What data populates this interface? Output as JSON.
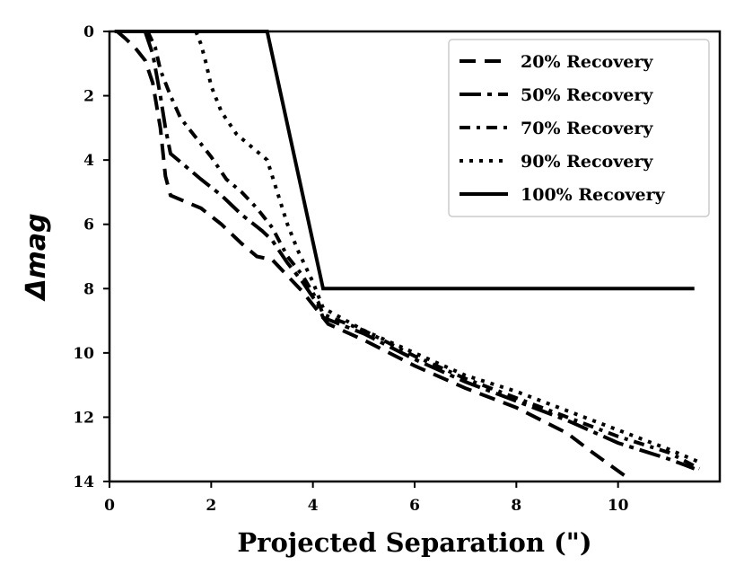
{
  "chart_data": {
    "type": "line",
    "title": "",
    "xlabel": "Projected Separation (\")",
    "ylabel": "Δmag",
    "xlim": [
      0,
      12
    ],
    "ylim": [
      0,
      14
    ],
    "y_inverted": true,
    "x_ticks": [
      "0",
      "2",
      "4",
      "6",
      "8",
      "10"
    ],
    "y_ticks": [
      "0",
      "2",
      "4",
      "6",
      "8",
      "10",
      "12",
      "14"
    ],
    "legend_position": "upper right",
    "series": [
      {
        "name": "20% Recovery",
        "style": "dashed",
        "points": [
          [
            0.15,
            0
          ],
          [
            0.3,
            0.2
          ],
          [
            0.5,
            0.5
          ],
          [
            0.7,
            0.9
          ],
          [
            0.85,
            1.6
          ],
          [
            1.0,
            3.0
          ],
          [
            1.1,
            4.5
          ],
          [
            1.2,
            5.1
          ],
          [
            1.5,
            5.3
          ],
          [
            1.8,
            5.5
          ],
          [
            2.2,
            6.0
          ],
          [
            2.6,
            6.6
          ],
          [
            2.9,
            7.0
          ],
          [
            3.2,
            7.1
          ],
          [
            3.5,
            7.6
          ],
          [
            3.8,
            8.1
          ],
          [
            4.1,
            8.7
          ],
          [
            4.3,
            9.1
          ],
          [
            5.0,
            9.6
          ],
          [
            6.0,
            10.4
          ],
          [
            7.0,
            11.1
          ],
          [
            8.0,
            11.7
          ],
          [
            9.0,
            12.5
          ],
          [
            9.5,
            13.1
          ],
          [
            10.2,
            13.9
          ]
        ]
      },
      {
        "name": "50% Recovery",
        "style": "dashdot-long",
        "points": [
          [
            0.7,
            0
          ],
          [
            0.85,
            0.7
          ],
          [
            1.0,
            2.0
          ],
          [
            1.1,
            3.0
          ],
          [
            1.2,
            3.8
          ],
          [
            1.5,
            4.2
          ],
          [
            1.8,
            4.6
          ],
          [
            2.2,
            5.1
          ],
          [
            2.6,
            5.7
          ],
          [
            3.0,
            6.2
          ],
          [
            3.2,
            6.5
          ],
          [
            3.5,
            7.2
          ],
          [
            3.8,
            7.8
          ],
          [
            4.1,
            8.5
          ],
          [
            4.2,
            8.9
          ],
          [
            5.0,
            9.4
          ],
          [
            6.0,
            10.2
          ],
          [
            7.0,
            10.9
          ],
          [
            8.0,
            11.5
          ],
          [
            9.0,
            12.1
          ],
          [
            10.0,
            12.8
          ],
          [
            11.0,
            13.3
          ],
          [
            11.5,
            13.6
          ]
        ]
      },
      {
        "name": "70% Recovery",
        "style": "dashdot",
        "points": [
          [
            0.75,
            0
          ],
          [
            0.9,
            0.5
          ],
          [
            1.0,
            1.2
          ],
          [
            1.2,
            2.0
          ],
          [
            1.4,
            2.7
          ],
          [
            1.7,
            3.3
          ],
          [
            2.0,
            3.9
          ],
          [
            2.3,
            4.6
          ],
          [
            2.6,
            5.0
          ],
          [
            2.9,
            5.5
          ],
          [
            3.2,
            6.1
          ],
          [
            3.5,
            7.0
          ],
          [
            3.8,
            7.6
          ],
          [
            4.1,
            8.4
          ],
          [
            4.2,
            8.8
          ],
          [
            5.0,
            9.3
          ],
          [
            6.0,
            10.1
          ],
          [
            7.0,
            10.8
          ],
          [
            8.0,
            11.4
          ],
          [
            9.0,
            12.0
          ],
          [
            10.0,
            12.6
          ],
          [
            11.0,
            13.1
          ],
          [
            11.6,
            13.6
          ]
        ]
      },
      {
        "name": "90% Recovery",
        "style": "dotted",
        "points": [
          [
            1.7,
            0
          ],
          [
            1.8,
            0.4
          ],
          [
            1.9,
            1.0
          ],
          [
            2.0,
            1.7
          ],
          [
            2.2,
            2.5
          ],
          [
            2.5,
            3.2
          ],
          [
            2.8,
            3.6
          ],
          [
            3.1,
            4.0
          ],
          [
            3.3,
            5.0
          ],
          [
            3.5,
            6.0
          ],
          [
            3.7,
            6.8
          ],
          [
            4.0,
            7.8
          ],
          [
            4.2,
            8.6
          ],
          [
            5.0,
            9.3
          ],
          [
            6.0,
            10.0
          ],
          [
            7.0,
            10.7
          ],
          [
            8.0,
            11.2
          ],
          [
            9.0,
            11.8
          ],
          [
            10.0,
            12.4
          ],
          [
            11.0,
            13.0
          ],
          [
            11.6,
            13.4
          ]
        ]
      },
      {
        "name": "100% Recovery",
        "style": "solid",
        "points": [
          [
            0.1,
            0
          ],
          [
            3.1,
            0
          ],
          [
            4.2,
            8
          ],
          [
            11.5,
            8
          ]
        ]
      }
    ]
  }
}
